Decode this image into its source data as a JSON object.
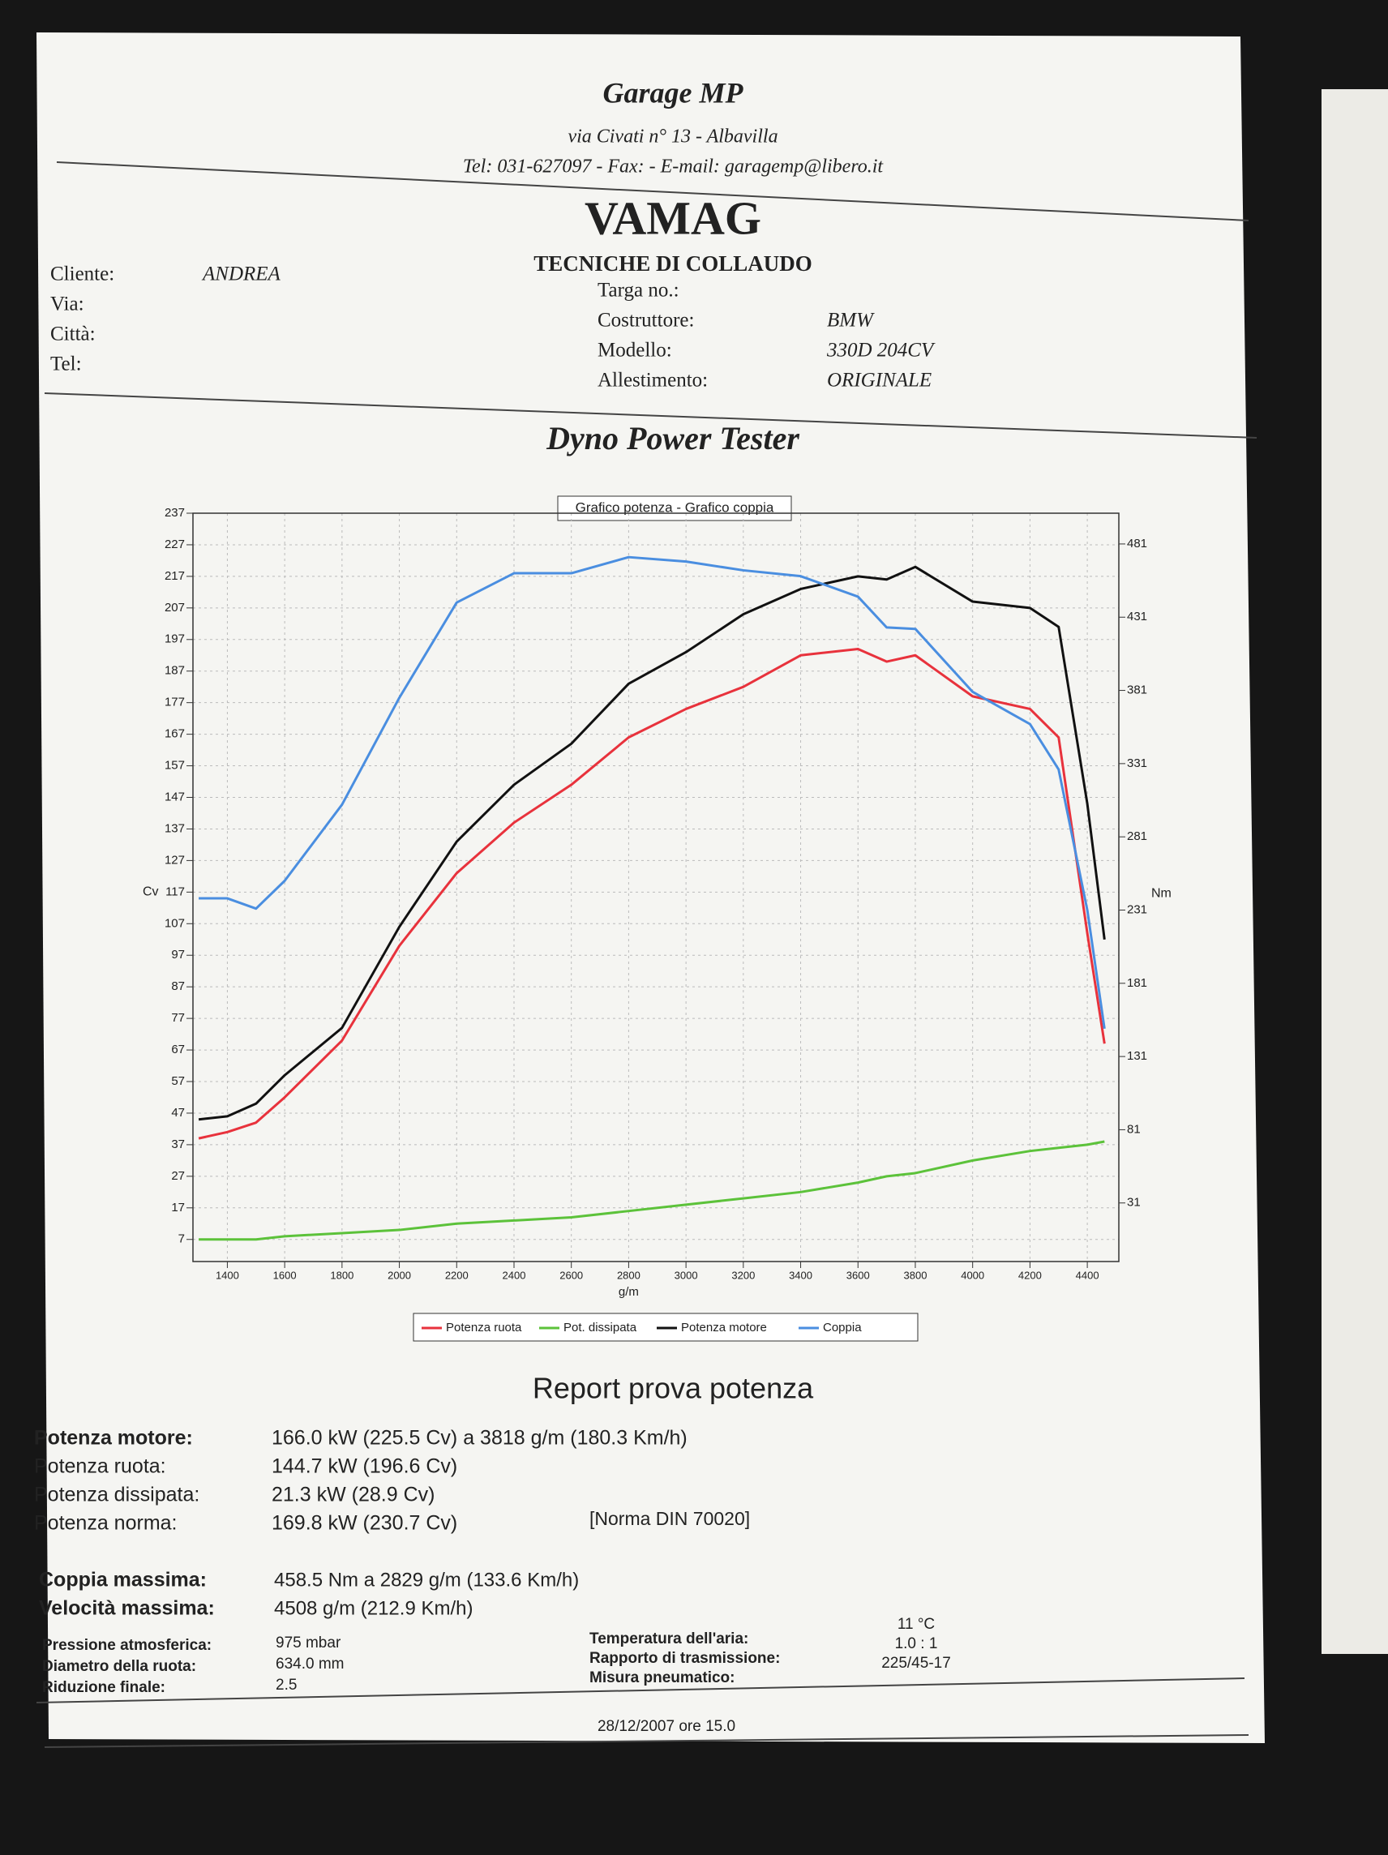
{
  "header": {
    "title": "Garage MP",
    "address": "via Civati n° 13 - Albavilla",
    "contact": "Tel: 031-627097 - Fax:  - E-mail: garagemp@libero.it",
    "brand": "VAMAG",
    "subtitle": "TECNICHE DI COLLAUDO"
  },
  "client": [
    {
      "label": "Cliente:",
      "value": "ANDREA"
    },
    {
      "label": "Via:"
    },
    {
      "label": "Città:"
    },
    {
      "label": "Tel:"
    }
  ],
  "vehicle": [
    {
      "label": "Targa no.:"
    },
    {
      "label": "Costruttore:",
      "value": "BMW"
    },
    {
      "label": "Modello:",
      "value": "330D  204CV"
    },
    {
      "label": "Allestimento:",
      "value": "ORIGINALE"
    }
  ],
  "section_title": "Dyno Power Tester",
  "chart_data": {
    "type": "line",
    "title": "Grafico potenza - Grafico coppia",
    "x_label": "g/m",
    "y_label": "Cv",
    "y2_label": "Nm",
    "x": [
      1300,
      1400,
      1500,
      1600,
      1800,
      2000,
      2200,
      2400,
      2600,
      2800,
      3000,
      3200,
      3400,
      3600,
      3700,
      3800,
      4000,
      4200,
      4300,
      4400,
      4460
    ],
    "series": [
      {
        "name": "Potenza ruota",
        "color": "#e8323c",
        "values": [
          39,
          41,
          44,
          52,
          70,
          100,
          123,
          139,
          151,
          166,
          175,
          182,
          192,
          194,
          190,
          192,
          179,
          175,
          166,
          104,
          69
        ]
      },
      {
        "name": "Pot. dissipata",
        "color": "#5cc23a",
        "values": [
          7,
          7,
          7,
          8,
          9,
          10,
          12,
          13,
          14,
          16,
          18,
          20,
          22,
          25,
          27,
          28,
          32,
          35,
          36,
          37,
          38
        ]
      },
      {
        "name": "Potenza motore",
        "color": "#111111",
        "values": [
          45,
          46,
          50,
          59,
          74,
          106,
          133,
          151,
          164,
          183,
          193,
          205,
          213,
          217,
          216,
          220,
          209,
          207,
          201,
          145,
          102
        ]
      },
      {
        "name": "Coppia",
        "color": "#4a8ee0",
        "axis": "y2",
        "values": [
          239,
          239,
          232,
          251,
          303,
          376,
          441,
          461,
          461,
          472,
          469,
          463,
          459,
          445,
          424,
          423,
          380,
          358,
          327,
          231,
          150
        ]
      }
    ],
    "xlim": [
      1280,
      4510
    ],
    "xticks": [
      1400,
      1600,
      1800,
      2000,
      2200,
      2400,
      2600,
      2800,
      3000,
      3200,
      3400,
      3600,
      3800,
      4000,
      4200,
      4400
    ],
    "ylim": [
      0,
      237
    ],
    "yticks": [
      7,
      17,
      27,
      37,
      47,
      57,
      67,
      77,
      87,
      97,
      107,
      117,
      127,
      137,
      147,
      157,
      167,
      177,
      187,
      197,
      207,
      217,
      227,
      237
    ],
    "y2lim": [
      -9,
      502
    ],
    "y2ticks": [
      31,
      81,
      131,
      181,
      231,
      281,
      331,
      381,
      431,
      481
    ],
    "grid": true
  },
  "report": {
    "title": "Report prova potenza",
    "main": [
      {
        "label": "Potenza motore:",
        "value": "166.0 kW (225.5 Cv) a 3818 g/m (180.3 Km/h)"
      },
      {
        "label": "Potenza ruota:",
        "value": "144.7 kW (196.6 Cv)"
      },
      {
        "label": "Potenza dissipata:",
        "value": "21.3 kW (28.9 Cv)"
      },
      {
        "label": "Potenza norma:",
        "value": "169.8 kW (230.7 Cv)",
        "note": "[Norma DIN 70020]"
      }
    ],
    "max": [
      {
        "label": "Coppia massima:",
        "value": "458.5 Nm a 2829 g/m (133.6 Km/h)"
      },
      {
        "label": "Velocità massima:",
        "value": "4508 g/m (212.9 Km/h)"
      }
    ],
    "conditions_left": [
      {
        "label": "Pressione atmosferica:",
        "value": "975 mbar"
      },
      {
        "label": "Diametro della ruota:",
        "value": "634.0 mm"
      },
      {
        "label": "Riduzione finale:",
        "value": "2.5"
      }
    ],
    "conditions_right": [
      {
        "label": "Temperatura dell'aria:",
        "value": "11 °C"
      },
      {
        "label": "Rapporto di trasmissione:",
        "value": "1.0 : 1"
      },
      {
        "label": "Misura pneumatico:",
        "value": "225/45-17"
      }
    ],
    "date": "28/12/2007 ore 15.0"
  }
}
